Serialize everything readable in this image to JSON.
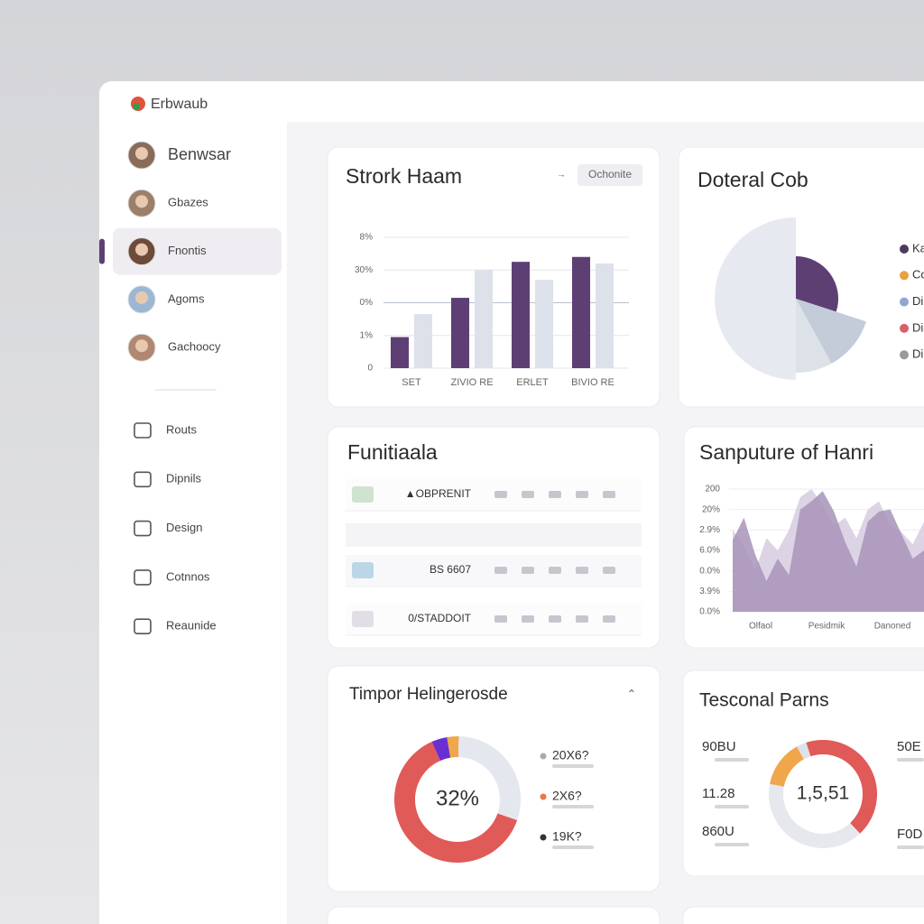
{
  "app": {
    "name": "Erbwaub"
  },
  "sidebar": {
    "users": [
      "Benwsar",
      "Gbazes",
      "Fnontis",
      "Agoms",
      "Gachoocy"
    ],
    "active_user": 2,
    "nav": [
      "Routs",
      "Dipnils",
      "Design",
      "Cotnnos",
      "Reaunide"
    ]
  },
  "bar_panel": {
    "title": "Strork Haam",
    "button": "Ochonite",
    "categories": [
      "SET",
      "ZIVIO RE",
      "ERLET",
      "BIVIO RE"
    ],
    "series": [
      {
        "color": "#5e3f74",
        "values": [
          0.95,
          2.15,
          3.25,
          3.4
        ]
      },
      {
        "color": "#dde1ea",
        "values": [
          1.65,
          3.0,
          2.7,
          3.2
        ]
      }
    ],
    "ylim": [
      0,
      4
    ],
    "yticks": [
      {
        "value": 0,
        "label": "0"
      },
      {
        "value": 1,
        "label": "1%"
      },
      {
        "value": 2,
        "label": "0%"
      },
      {
        "value": 3,
        "label": "30%"
      },
      {
        "value": 4,
        "label": "8%"
      }
    ]
  },
  "pie_panel": {
    "title": "Doteral Cob",
    "values": [
      30,
      12,
      8,
      50
    ],
    "colors": [
      "#5e3f74",
      "#c3ccd8",
      "#dde1e8",
      "#e6e9ef"
    ],
    "legend": [
      {
        "label": "Ka",
        "color": "#4a3a5c"
      },
      {
        "label": "Co",
        "color": "#e9a040"
      },
      {
        "label": "Di",
        "color": "#8ea8d0"
      },
      {
        "label": "Di",
        "color": "#d9606a"
      },
      {
        "label": "Di",
        "color": "#999999"
      }
    ]
  },
  "table_panel": {
    "title": "Funitiaala",
    "rows": [
      "▲OBPRENIT",
      "BS 6607",
      "0/STADDOIT"
    ]
  },
  "area_panel": {
    "title": "Sanputure of Hanri",
    "x_labels": [
      "Olfaol",
      "Pesidmik",
      "Danoned"
    ],
    "series": [
      {
        "color": "#d6cbdf",
        "values": [
          4.0,
          3.2,
          2.0,
          3.6,
          3.0,
          4.0,
          5.6,
          6.0,
          5.2,
          4.2,
          4.6,
          3.6,
          5.0,
          5.4,
          4.2,
          3.9,
          3.3,
          4.4
        ]
      },
      {
        "color": "#a893b8",
        "values": [
          3.5,
          4.6,
          2.8,
          1.5,
          2.6,
          1.8,
          5.0,
          5.4,
          5.9,
          4.9,
          3.4,
          2.2,
          4.4,
          4.9,
          5.0,
          3.8,
          2.6,
          3.0
        ]
      }
    ],
    "ylim": [
      0,
      6
    ],
    "yticks": [
      {
        "value": 0,
        "label": "0.0%"
      },
      {
        "value": 1,
        "label": "3.9%"
      },
      {
        "value": 2,
        "label": "0.0%"
      },
      {
        "value": 3,
        "label": "6.0%"
      },
      {
        "value": 4,
        "label": "2.9%"
      },
      {
        "value": 5,
        "label": "20%"
      },
      {
        "value": 6,
        "label": "200"
      }
    ]
  },
  "donut_panel": {
    "title": "Timpor Helingerosde",
    "center": "32%",
    "values": [
      4,
      3,
      30,
      63
    ],
    "colors": [
      "#6a2fd0",
      "#f0a64a",
      "#e4e7ee",
      "#e05a58"
    ],
    "legend": [
      {
        "label": "20X6?",
        "color": "#aaaaaa"
      },
      {
        "label": "2X6?",
        "color": "#e8774a"
      },
      {
        "label": "19K?",
        "color": "#333333"
      }
    ]
  },
  "ring_panel": {
    "title": "Tesconal Parns",
    "center": "1,5,51",
    "values": [
      38,
      40,
      14,
      3,
      5
    ],
    "colors": [
      "#e05a58",
      "#e6e8ee",
      "#f0a64a",
      "#dde1e8",
      "#e05a58"
    ],
    "labels_left": [
      "90BU",
      "11.28",
      "860U"
    ],
    "labels_right": [
      "50E",
      "F0D"
    ]
  }
}
